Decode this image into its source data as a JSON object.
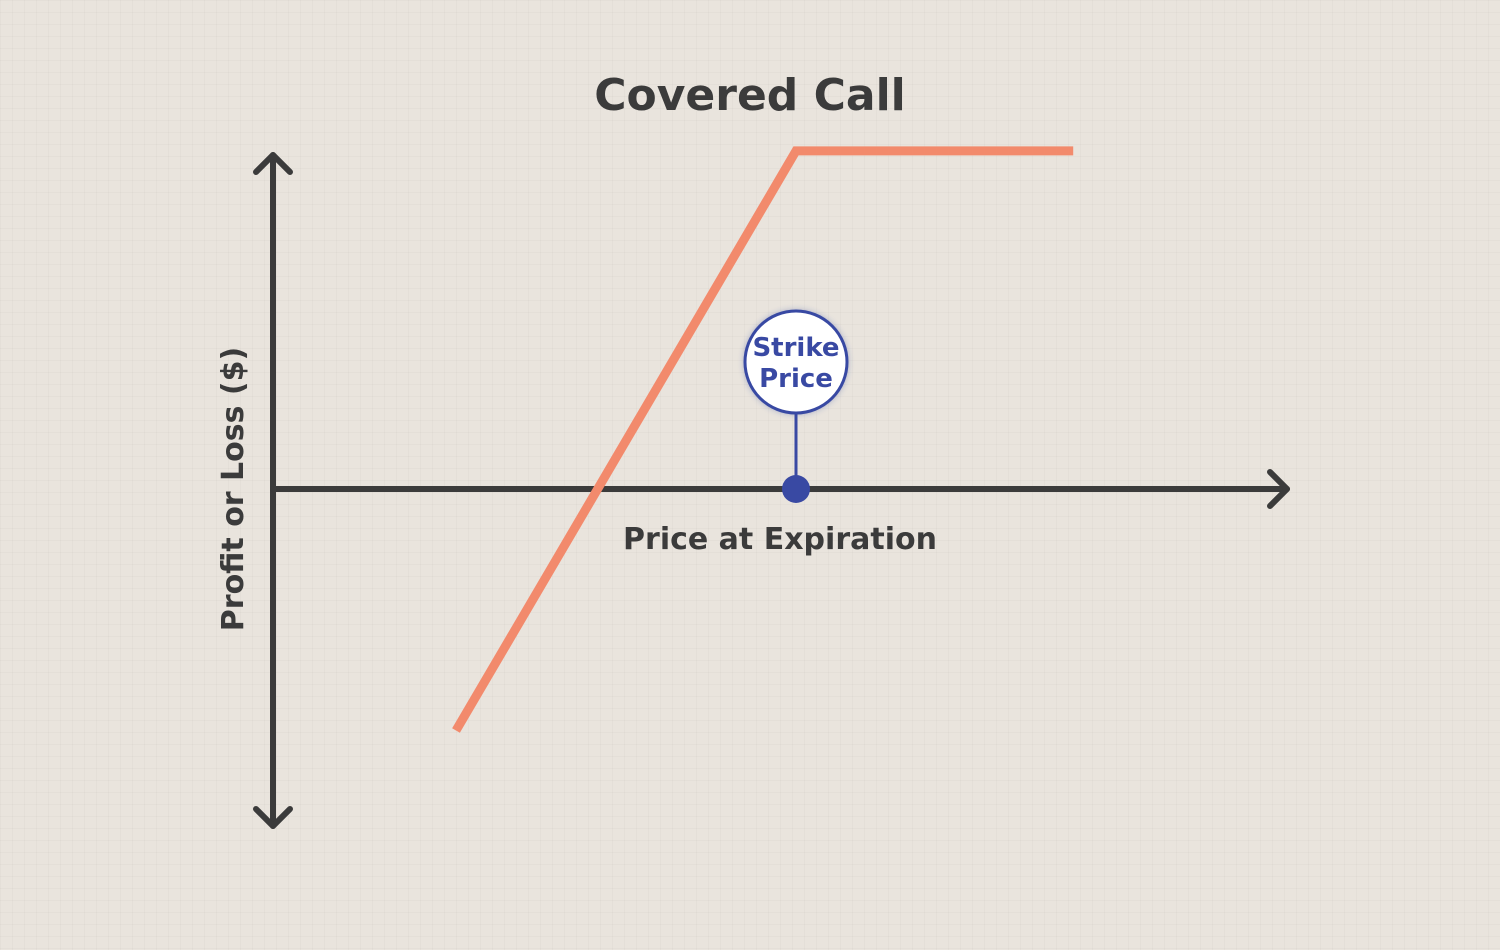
{
  "chart_data": {
    "type": "line",
    "title": "Covered Call",
    "xlabel": "Price at Expiration",
    "ylabel": "Profit or Loss ($)",
    "series": [
      {
        "values": [
          {
            "x": 0.35,
            "y": -1.0
          },
          {
            "x": 1.0,
            "y": 1.4
          },
          {
            "x": 1.53,
            "y": 1.4
          }
        ]
      }
    ],
    "xlim": [
      0,
      1.6
    ],
    "ylim": [
      -1.6,
      1.6
    ],
    "annotations": [
      {
        "label": "Strike\nPrice",
        "x": 1.0,
        "y": 0
      }
    ],
    "colors": {
      "payoff_line": "#f28a6c",
      "axis": "#3b3b3b",
      "strike_marker": "#3949a3",
      "strike_circle_fill": "#ffffff"
    },
    "grid": false,
    "legend": "none"
  }
}
